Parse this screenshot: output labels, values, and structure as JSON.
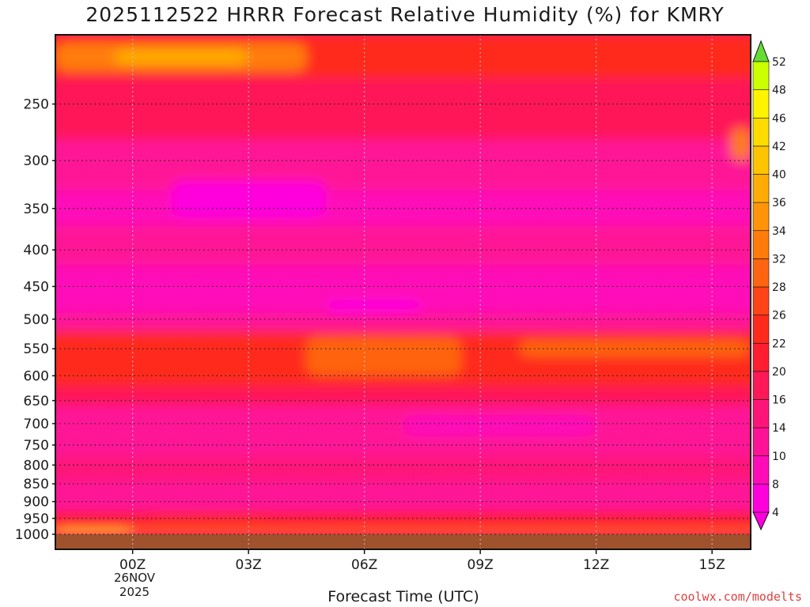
{
  "chart_data": {
    "type": "heatmap",
    "title": "2025112522 HRRR Forecast Relative Humidity (%) for KMRY",
    "xlabel": "Forecast Time (UTC)",
    "ylabel": "",
    "x_ticks": [
      "00Z",
      "03Z",
      "06Z",
      "09Z",
      "12Z",
      "15Z"
    ],
    "x_tick_hours": [
      0,
      3,
      6,
      9,
      12,
      15
    ],
    "x_range_hours": [
      -2,
      16
    ],
    "date_label": [
      "26NOV",
      "2025"
    ],
    "y_ticks": [
      250,
      300,
      350,
      400,
      450,
      500,
      550,
      600,
      650,
      700,
      750,
      800,
      850,
      900,
      950,
      1000
    ],
    "y_range_hPa": [
      200,
      1000
    ],
    "y_scale": "log-pressure (reversed)",
    "grid": true,
    "colorbar": {
      "levels": [
        4,
        8,
        10,
        14,
        16,
        20,
        22,
        26,
        28,
        32,
        34,
        36,
        40,
        42,
        46,
        48,
        52
      ],
      "colors": [
        "#ff00dd",
        "#ff0cb8",
        "#ff1296",
        "#ff1478",
        "#ff1858",
        "#ff1e30",
        "#ff2a1c",
        "#ff4418",
        "#ff6410",
        "#ff7c0a",
        "#ff9408",
        "#ffac06",
        "#ffc400",
        "#ffdc00",
        "#fff400",
        "#ccff00",
        "#99ee33"
      ],
      "under_color": "#ff00dd",
      "over_color": "#66dd33"
    },
    "ground_color": "#a0522d",
    "layers": [
      {
        "p_top": 200,
        "p_bot": 230,
        "rh": 22
      },
      {
        "p_top": 230,
        "p_bot": 280,
        "rh": 16
      },
      {
        "p_top": 280,
        "p_bot": 330,
        "rh": 12
      },
      {
        "p_top": 330,
        "p_bot": 370,
        "rh": 9
      },
      {
        "p_top": 370,
        "p_bot": 420,
        "rh": 12
      },
      {
        "p_top": 420,
        "p_bot": 490,
        "rh": 9
      },
      {
        "p_top": 490,
        "p_bot": 520,
        "rh": 12
      },
      {
        "p_top": 520,
        "p_bot": 560,
        "rh": 22
      },
      {
        "p_top": 560,
        "p_bot": 620,
        "rh": 24
      },
      {
        "p_top": 620,
        "p_bot": 660,
        "rh": 18
      },
      {
        "p_top": 660,
        "p_bot": 780,
        "rh": 10
      },
      {
        "p_top": 780,
        "p_bot": 840,
        "rh": 14
      },
      {
        "p_top": 840,
        "p_bot": 930,
        "rh": 12
      },
      {
        "p_top": 930,
        "p_bot": 980,
        "rh": 20
      },
      {
        "p_top": 980,
        "p_bot": 1000,
        "rh": 30
      }
    ],
    "blobs": [
      {
        "t0": -2,
        "t1": 4.5,
        "p0": 205,
        "p1": 225,
        "rh": 32
      },
      {
        "t0": -0.5,
        "t1": 3,
        "p0": 210,
        "p1": 220,
        "rh": 36
      },
      {
        "t0": 4.5,
        "t1": 8.5,
        "p0": 530,
        "p1": 600,
        "rh": 28
      },
      {
        "t0": 10,
        "t1": 16,
        "p0": 535,
        "p1": 565,
        "rh": 28
      },
      {
        "t0": 15.5,
        "t1": 16,
        "p0": 270,
        "p1": 300,
        "rh": 32
      },
      {
        "t0": 1,
        "t1": 5,
        "p0": 320,
        "p1": 360,
        "rh": 6
      },
      {
        "t0": 5,
        "t1": 7.5,
        "p0": 470,
        "p1": 490,
        "rh": 6
      },
      {
        "t0": 7,
        "t1": 12,
        "p0": 680,
        "p1": 730,
        "rh": 8
      },
      {
        "t0": 0.5,
        "t1": 3.5,
        "p0": 940,
        "p1": 960,
        "rh": 24
      },
      {
        "t0": -2,
        "t1": 0,
        "p0": 985,
        "p1": 1000,
        "rh": 42
      }
    ],
    "watermark": "coolwx.com/modelts"
  }
}
